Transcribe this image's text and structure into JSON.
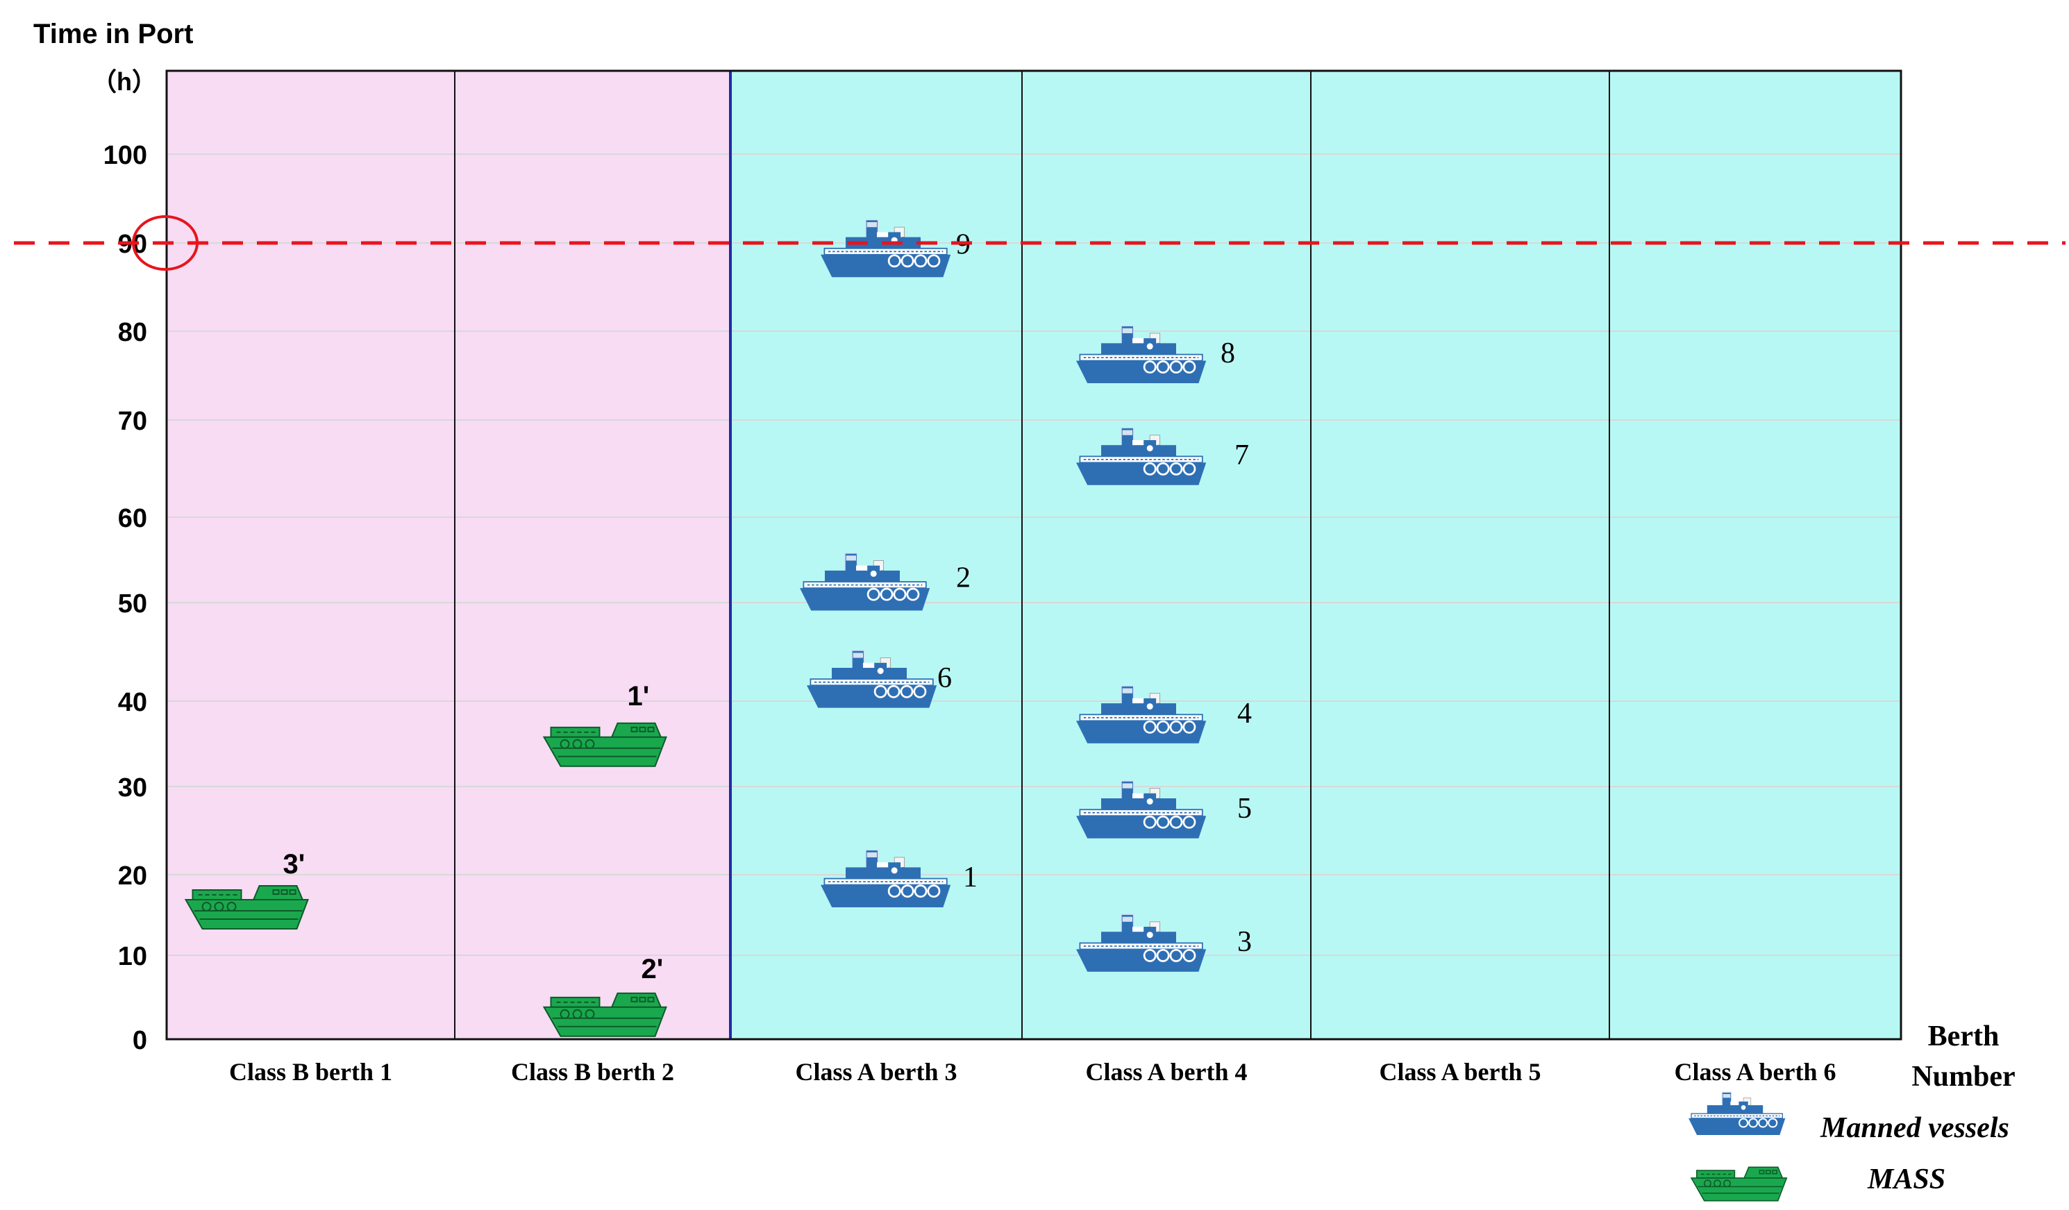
{
  "title": "Time in Port",
  "unit": "（h）",
  "x_axis_label_line1": "Berth",
  "x_axis_label_line2": "Number",
  "y_ticks": [
    "0",
    "10",
    "20",
    "30",
    "40",
    "50",
    "60",
    "70",
    "80",
    "90",
    "100"
  ],
  "threshold_hours": 90,
  "berths": [
    {
      "label": "Class B berth 1",
      "class": "B"
    },
    {
      "label": "Class B berth 2",
      "class": "B"
    },
    {
      "label": "Class A berth 3",
      "class": "A"
    },
    {
      "label": "Class A berth 4",
      "class": "A"
    },
    {
      "label": "Class A berth 5",
      "class": "A"
    },
    {
      "label": "Class A berth 6",
      "class": "A"
    }
  ],
  "vessels": [
    {
      "id": "3'",
      "type": "mass",
      "berth": 1,
      "hours": 15
    },
    {
      "id": "1'",
      "type": "mass",
      "berth": 2,
      "hours": 34
    },
    {
      "id": "2'",
      "type": "mass",
      "berth": 2,
      "hours": 2
    },
    {
      "id": "9",
      "type": "manned",
      "berth": 3,
      "hours": 88
    },
    {
      "id": "2",
      "type": "manned",
      "berth": 3,
      "hours": 51
    },
    {
      "id": "6",
      "type": "manned",
      "berth": 3,
      "hours": 41
    },
    {
      "id": "1",
      "type": "manned",
      "berth": 3,
      "hours": 18
    },
    {
      "id": "8",
      "type": "manned",
      "berth": 4,
      "hours": 76
    },
    {
      "id": "7",
      "type": "manned",
      "berth": 4,
      "hours": 65
    },
    {
      "id": "4",
      "type": "manned",
      "berth": 4,
      "hours": 37
    },
    {
      "id": "5",
      "type": "manned",
      "berth": 4,
      "hours": 26
    },
    {
      "id": "3",
      "type": "manned",
      "berth": 4,
      "hours": 10
    }
  ],
  "legend": {
    "manned_label": "Manned vessels",
    "mass_label": "MASS"
  },
  "colors": {
    "class_b_bg": "#f7dcf4",
    "class_a_bg": "#b8f8f4",
    "threshold": "#e8141c",
    "manned": "#2e6fb4",
    "mass": "#1aa84e",
    "divider": "#1e2aa8"
  }
}
